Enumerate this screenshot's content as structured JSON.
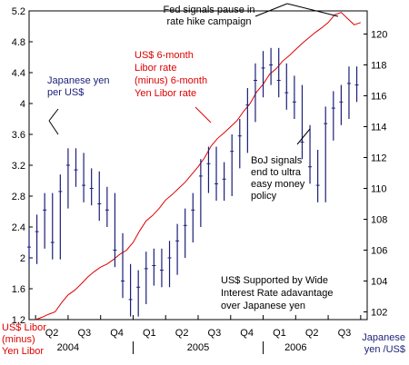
{
  "chart_data": {
    "type": "line",
    "title": "",
    "axes": {
      "left": {
        "label_lines": [
          "US$ Libor",
          "(minus)",
          "Yen Libor"
        ],
        "ticks": [
          1.2,
          1.6,
          2,
          2.4,
          2.8,
          3.2,
          3.6,
          4,
          4.4,
          4.8,
          5.2
        ],
        "ylim": [
          1.2,
          5.2
        ]
      },
      "right": {
        "label_lines": [
          "Japanese",
          "yen /US$"
        ],
        "ticks": [
          102,
          104,
          106,
          108,
          110,
          112,
          114,
          116,
          118,
          120
        ],
        "ylim": [
          101.5,
          121.5
        ]
      },
      "x": {
        "quarters": [
          "Q2",
          "Q3",
          "Q4",
          "Q1",
          "Q2",
          "Q3",
          "Q4",
          "Q1",
          "Q2",
          "Q3"
        ],
        "years": [
          {
            "label": "2004",
            "after_quarter": 1
          },
          {
            "label": "2005",
            "after_quarter": 5
          },
          {
            "label": "2006",
            "after_quarter": 8
          }
        ],
        "year_divider_quarters": [
          3,
          7
        ],
        "start": "2004-04",
        "end": "2006-10"
      }
    },
    "grid": false,
    "series": [
      {
        "name": "US$ 6-month Libor rate (minus) 6-month Yen Libor rate",
        "axis": "left",
        "color": "#dd0000",
        "style": "line",
        "x": [
          2004.25,
          2004.3,
          2004.35,
          2004.4,
          2004.45,
          2004.5,
          2004.55,
          2004.6,
          2004.65,
          2004.7,
          2004.75,
          2004.8,
          2004.85,
          2004.9,
          2004.95,
          2005.0,
          2005.05,
          2005.1,
          2005.15,
          2005.2,
          2005.25,
          2005.3,
          2005.35,
          2005.4,
          2005.45,
          2005.5,
          2005.55,
          2005.6,
          2005.65,
          2005.7,
          2005.75,
          2005.8,
          2005.85,
          2005.9,
          2005.95,
          2006.0,
          2006.05,
          2006.1,
          2006.15,
          2006.2,
          2006.25,
          2006.3,
          2006.35,
          2006.4,
          2006.45,
          2006.5,
          2006.55,
          2006.6,
          2006.65,
          2006.7,
          2006.75
        ],
        "values": [
          1.2,
          1.23,
          1.27,
          1.3,
          1.42,
          1.52,
          1.58,
          1.66,
          1.75,
          1.82,
          1.88,
          1.92,
          1.98,
          2.05,
          2.1,
          2.2,
          2.35,
          2.48,
          2.55,
          2.64,
          2.75,
          2.82,
          2.9,
          2.98,
          3.08,
          3.18,
          3.3,
          3.45,
          3.55,
          3.62,
          3.7,
          3.78,
          3.9,
          4.0,
          4.15,
          4.25,
          4.38,
          4.45,
          4.55,
          4.62,
          4.7,
          4.78,
          4.85,
          4.92,
          4.98,
          5.05,
          5.15,
          5.18,
          5.1,
          5.02,
          5.05
        ]
      },
      {
        "name": "Japanese yen per US$",
        "axis": "right",
        "color": "#1a1f78",
        "style": "high-low",
        "x": [
          2004.2,
          2004.26,
          2004.32,
          2004.38,
          2004.44,
          2004.5,
          2004.56,
          2004.62,
          2004.68,
          2004.74,
          2004.8,
          2004.86,
          2004.92,
          2004.98,
          2005.04,
          2005.1,
          2005.16,
          2005.22,
          2005.28,
          2005.34,
          2005.4,
          2005.46,
          2005.52,
          2005.58,
          2005.64,
          2005.7,
          2005.76,
          2005.82,
          2005.88,
          2005.94,
          2006.0,
          2006.06,
          2006.12,
          2006.18,
          2006.24,
          2006.3,
          2006.36,
          2006.42,
          2006.48,
          2006.54,
          2006.6,
          2006.66,
          2006.72
        ],
        "values": [
          106.2,
          107.2,
          108.6,
          106.5,
          109.8,
          111.5,
          111.2,
          110.2,
          110.0,
          109.0,
          108.6,
          106.0,
          104.0,
          102.8,
          103.6,
          104.8,
          105.0,
          104.7,
          105.5,
          106.6,
          107.6,
          108.6,
          110.8,
          111.6,
          110.3,
          110.6,
          112.4,
          113.4,
          115.4,
          117.0,
          117.8,
          118.0,
          117.0,
          116.2,
          115.6,
          113.0,
          111.4,
          110.2,
          114.2,
          115.2,
          115.6,
          116.8,
          116.7
        ]
      }
    ],
    "annotations": [
      {
        "lines": [
          "Fed signals pause in",
          "rate hike campaign"
        ],
        "color": "#000000"
      },
      {
        "lines": [
          "Japanese yen",
          "per US$"
        ],
        "color": "#1a1f78"
      },
      {
        "lines": [
          "US$ 6-month",
          "Libor rate",
          "(minus) 6-month",
          "Yen Libor rate"
        ],
        "color": "#dd0000"
      },
      {
        "lines": [
          "BoJ signals",
          "end to ultra",
          "easy money",
          "policy"
        ],
        "color": "#000000"
      },
      {
        "lines": [
          "US$ Supported by Wide",
          "Interest Rate adavantage",
          "over Japanese yen"
        ],
        "color": "#000000"
      }
    ]
  }
}
